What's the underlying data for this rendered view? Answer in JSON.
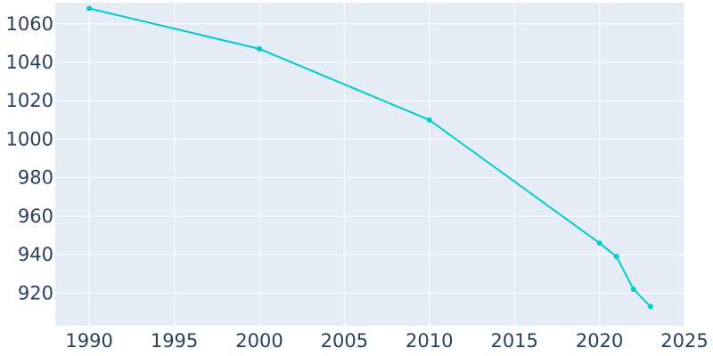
{
  "chart_data": {
    "type": "line",
    "title": "",
    "xlabel": "",
    "ylabel": "",
    "x": [
      1990,
      2000,
      2010,
      2020,
      2021,
      2022,
      2023
    ],
    "series": [
      {
        "values": [
          1068,
          1047,
          1010,
          946,
          939,
          922,
          913
        ]
      }
    ],
    "xlim": [
      1988,
      2025
    ],
    "ylim": [
      903,
      1071
    ],
    "x_ticks": [
      1990,
      1995,
      2000,
      2005,
      2010,
      2015,
      2020,
      2025
    ],
    "y_ticks": [
      920,
      940,
      960,
      980,
      1000,
      1020,
      1040,
      1060
    ],
    "grid": true,
    "legend": "none",
    "colors": {
      "line": "#00cccc",
      "plot_bg": "#e5ecf6",
      "grid": "#ffffff",
      "text": "#2a3f5f"
    }
  }
}
